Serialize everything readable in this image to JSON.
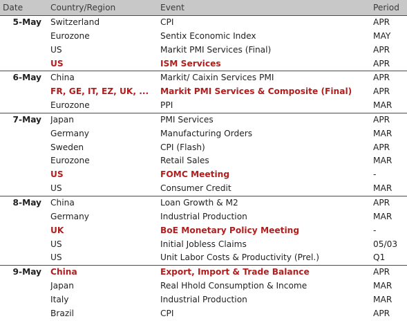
{
  "header": {
    "date": "Date",
    "country": "Country/Region",
    "event": "Event",
    "period": "Period"
  },
  "groups": [
    {
      "date": "5-May",
      "rows": [
        {
          "country": "Switzerland",
          "event": "CPI",
          "period": "APR",
          "highlight": false
        },
        {
          "country": "Eurozone",
          "event": "Sentix Economic Index",
          "period": "MAY",
          "highlight": false
        },
        {
          "country": "US",
          "event": "Markit PMI Services (Final)",
          "period": "APR",
          "highlight": false
        },
        {
          "country": "US",
          "event": "ISM Services",
          "period": "APR",
          "highlight": true
        }
      ]
    },
    {
      "date": "6-May",
      "rows": [
        {
          "country": "China",
          "event": "Markit/ Caixin Services PMI",
          "period": "APR",
          "highlight": false
        },
        {
          "country": "FR, GE, IT, EZ, UK, ...",
          "event": "Markit PMI Services & Composite (Final)",
          "period": "APR",
          "highlight": true
        },
        {
          "country": "Eurozone",
          "event": "PPI",
          "period": "MAR",
          "highlight": false
        }
      ]
    },
    {
      "date": "7-May",
      "rows": [
        {
          "country": "Japan",
          "event": "PMI Services",
          "period": "APR",
          "highlight": false
        },
        {
          "country": "Germany",
          "event": "Manufacturing Orders",
          "period": "MAR",
          "highlight": false
        },
        {
          "country": "Sweden",
          "event": "CPI (Flash)",
          "period": "APR",
          "highlight": false
        },
        {
          "country": "Eurozone",
          "event": "Retail Sales",
          "period": "MAR",
          "highlight": false
        },
        {
          "country": "US",
          "event": "FOMC Meeting",
          "period": "-",
          "highlight": true
        },
        {
          "country": "US",
          "event": "Consumer Credit",
          "period": "MAR",
          "highlight": false
        }
      ]
    },
    {
      "date": "8-May",
      "rows": [
        {
          "country": "China",
          "event": "Loan Growth & M2",
          "period": "APR",
          "highlight": false
        },
        {
          "country": "Germany",
          "event": "Industrial Production",
          "period": "MAR",
          "highlight": false
        },
        {
          "country": "UK",
          "event": "BoE Monetary Policy Meeting",
          "period": "-",
          "highlight": true
        },
        {
          "country": "US",
          "event": "Initial Jobless Claims",
          "period": "05/03",
          "highlight": false
        },
        {
          "country": "US",
          "event": "Unit Labor Costs & Productivity (Prel.)",
          "period": "Q1",
          "highlight": false
        }
      ]
    },
    {
      "date": "9-May",
      "rows": [
        {
          "country": "China",
          "event": "Export, Import & Trade Balance",
          "period": "APR",
          "highlight": true
        },
        {
          "country": "Japan",
          "event": "Real Hhold Consumption & Income",
          "period": "MAR",
          "highlight": false
        },
        {
          "country": "Italy",
          "event": "Industrial Production",
          "period": "MAR",
          "highlight": false
        },
        {
          "country": "Brazil",
          "event": "CPI",
          "period": "APR",
          "highlight": false
        }
      ]
    }
  ],
  "colors": {
    "header_bg": "#c8c8c8",
    "highlight": "#b01e1e",
    "divider": "#4a4a4a"
  }
}
